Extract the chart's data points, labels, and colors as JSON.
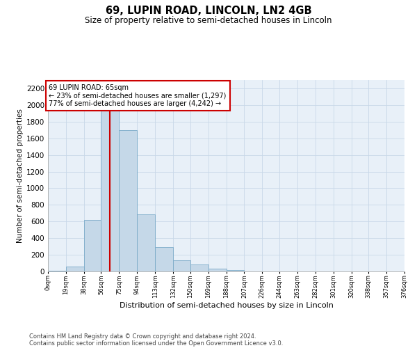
{
  "title1": "69, LUPIN ROAD, LINCOLN, LN2 4GB",
  "title2": "Size of property relative to semi-detached houses in Lincoln",
  "xlabel": "Distribution of semi-detached houses by size in Lincoln",
  "ylabel": "Number of semi-detached properties",
  "property_size": 65,
  "property_label": "69 LUPIN ROAD: 65sqm",
  "pct_smaller": 23,
  "n_smaller": 1297,
  "pct_larger": 77,
  "n_larger": 4242,
  "bin_edges": [
    0,
    19,
    38,
    56,
    75,
    94,
    113,
    132,
    150,
    169,
    188,
    207,
    226,
    244,
    263,
    282,
    301,
    320,
    338,
    357,
    376
  ],
  "bar_heights": [
    5,
    60,
    620,
    2120,
    1700,
    690,
    290,
    130,
    80,
    30,
    20,
    0,
    0,
    0,
    0,
    0,
    0,
    0,
    0,
    0
  ],
  "bar_color": "#c5d8e8",
  "bar_edge_color": "#7aaac8",
  "vline_x": 65,
  "vline_color": "#cc0000",
  "annotation_box_color": "#cc0000",
  "grid_color": "#c8d8e8",
  "bg_color": "#e8f0f8",
  "ylim": [
    0,
    2300
  ],
  "yticks": [
    0,
    200,
    400,
    600,
    800,
    1000,
    1200,
    1400,
    1600,
    1800,
    2000,
    2200
  ],
  "tick_labels": [
    "0sqm",
    "19sqm",
    "38sqm",
    "56sqm",
    "75sqm",
    "94sqm",
    "113sqm",
    "132sqm",
    "150sqm",
    "169sqm",
    "188sqm",
    "207sqm",
    "226sqm",
    "244sqm",
    "263sqm",
    "282sqm",
    "301sqm",
    "320sqm",
    "338sqm",
    "357sqm",
    "376sqm"
  ],
  "footer1": "Contains HM Land Registry data © Crown copyright and database right 2024.",
  "footer2": "Contains public sector information licensed under the Open Government Licence v3.0."
}
